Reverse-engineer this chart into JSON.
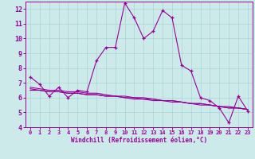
{
  "xlabel": "Windchill (Refroidissement éolien,°C)",
  "bg_color": "#cceaea",
  "line_color": "#990099",
  "grid_color": "#aad4d4",
  "xlim": [
    -0.5,
    23.5
  ],
  "ylim": [
    4,
    12.5
  ],
  "yticks": [
    4,
    5,
    6,
    7,
    8,
    9,
    10,
    11,
    12
  ],
  "xticks": [
    0,
    1,
    2,
    3,
    4,
    5,
    6,
    7,
    8,
    9,
    10,
    11,
    12,
    13,
    14,
    15,
    16,
    17,
    18,
    19,
    20,
    21,
    22,
    23
  ],
  "line1_x": [
    0,
    1,
    2,
    3,
    4,
    5,
    6,
    7,
    8,
    9,
    10,
    11,
    12,
    13,
    14,
    15,
    16,
    17,
    18,
    19,
    20,
    21,
    22,
    23
  ],
  "line1_y": [
    7.4,
    6.9,
    6.1,
    6.7,
    6.0,
    6.5,
    6.4,
    8.5,
    9.4,
    9.4,
    12.4,
    11.4,
    10.0,
    10.5,
    11.9,
    11.4,
    8.2,
    7.8,
    6.0,
    5.8,
    5.3,
    4.3,
    6.1,
    5.1
  ],
  "line2_x": [
    0,
    1,
    2,
    3,
    4,
    5,
    6,
    7,
    8,
    9,
    10,
    11,
    12,
    13,
    14,
    15,
    16,
    17,
    18,
    19,
    20,
    21,
    22,
    23
  ],
  "line2_y": [
    6.5,
    6.5,
    6.4,
    6.4,
    6.3,
    6.3,
    6.2,
    6.2,
    6.1,
    6.1,
    6.0,
    6.0,
    5.9,
    5.9,
    5.8,
    5.8,
    5.7,
    5.6,
    5.6,
    5.5,
    5.4,
    5.4,
    5.3,
    5.2
  ],
  "line3_x": [
    0,
    1,
    2,
    3,
    4,
    5,
    6,
    7,
    8,
    9,
    10,
    11,
    12,
    13,
    14,
    15,
    16,
    17,
    18,
    19,
    20,
    21,
    22,
    23
  ],
  "line3_y": [
    6.6,
    6.5,
    6.4,
    6.4,
    6.3,
    6.3,
    6.2,
    6.2,
    6.1,
    6.1,
    6.0,
    5.9,
    5.9,
    5.8,
    5.8,
    5.7,
    5.7,
    5.6,
    5.5,
    5.5,
    5.4,
    5.3,
    5.3,
    5.2
  ],
  "line4_x": [
    0,
    1,
    2,
    3,
    4,
    5,
    6,
    7,
    8,
    9,
    10,
    11,
    12,
    13,
    14,
    15,
    16,
    17,
    18,
    19,
    20,
    21,
    22,
    23
  ],
  "line4_y": [
    6.7,
    6.6,
    6.5,
    6.5,
    6.4,
    6.4,
    6.3,
    6.3,
    6.2,
    6.1,
    6.1,
    6.0,
    6.0,
    5.9,
    5.8,
    5.8,
    5.7,
    5.6,
    5.6,
    5.5,
    5.4,
    5.3,
    5.3,
    5.2
  ]
}
